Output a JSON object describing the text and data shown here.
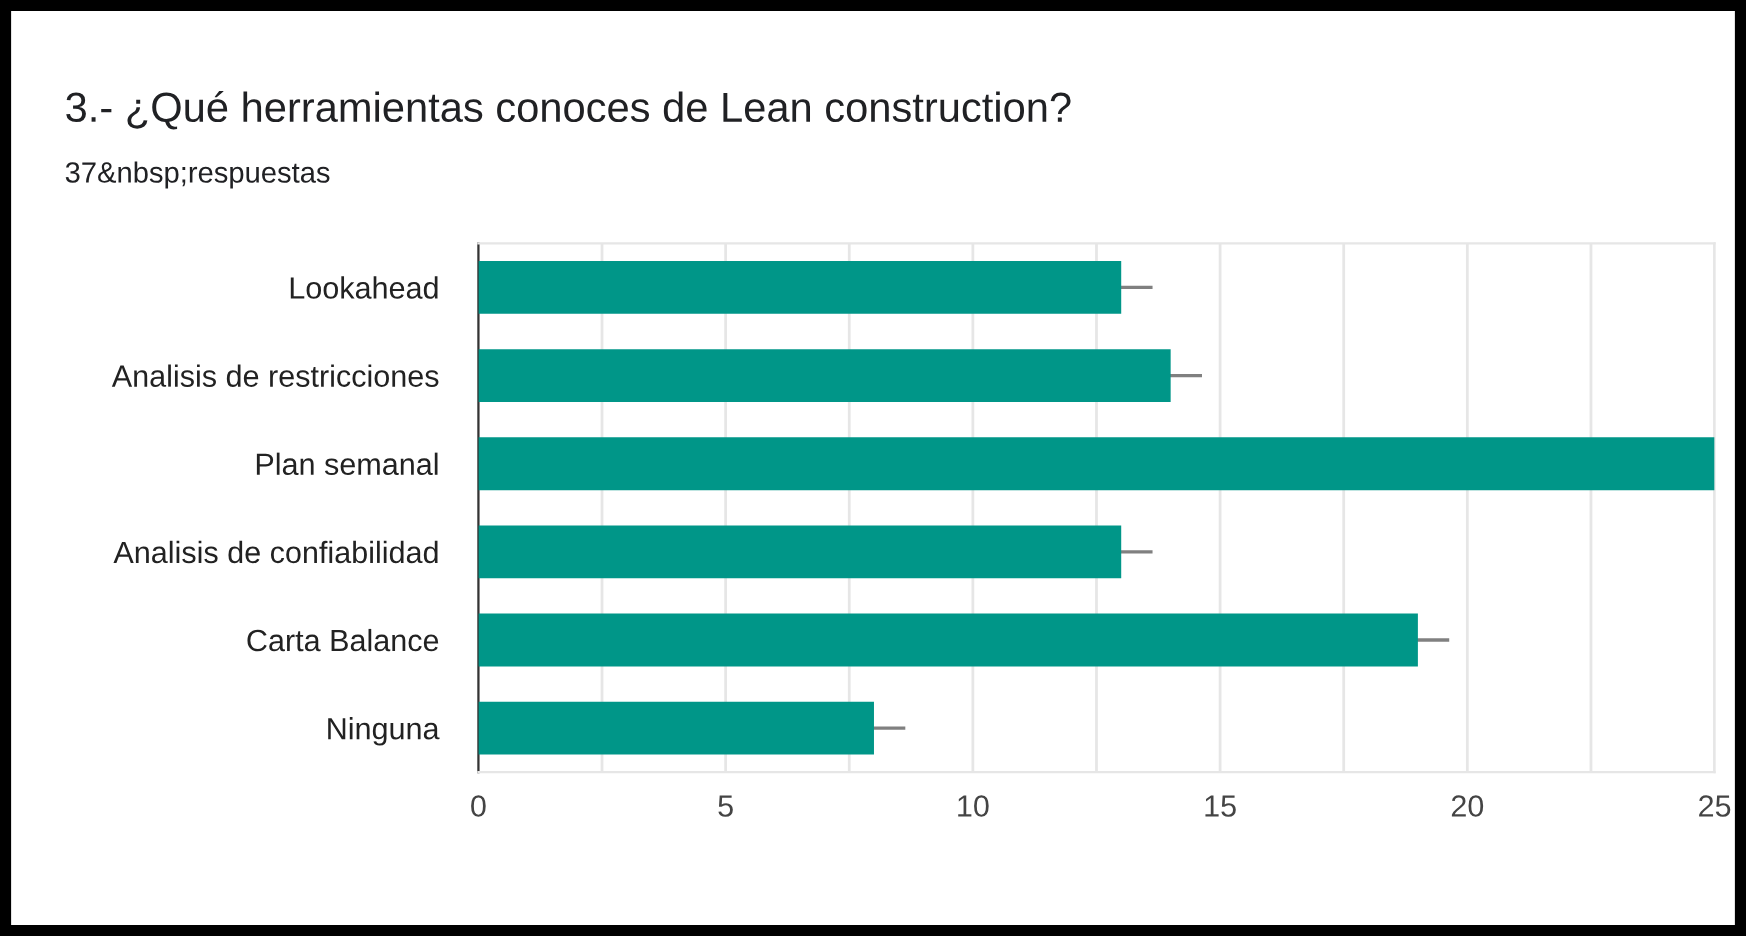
{
  "chart_data": {
    "type": "bar",
    "orientation": "horizontal",
    "title": "3.- ¿Qué herramientas conoces de Lean construction?",
    "subtitle": "37&nbsp;respuestas",
    "categories": [
      "Lookahead",
      "Analisis de restricciones",
      "Plan semanal",
      "Analisis de confiabilidad",
      "Carta Balance",
      "Ninguna"
    ],
    "values": [
      13,
      14,
      25,
      13,
      19,
      8
    ],
    "errors": [
      [
        13,
        13.6
      ],
      [
        14,
        14.6
      ],
      null,
      [
        13,
        13.6
      ],
      [
        19,
        19.6
      ],
      [
        8,
        8.6
      ]
    ],
    "color": "#009688",
    "xlim": [
      0,
      25
    ],
    "xticks": [
      0,
      {
        "value": 2.5,
        "label": null
      },
      5,
      {
        "value": 7.5,
        "label": null
      },
      10,
      {
        "value": 12.5,
        "label": null
      },
      15,
      {
        "value": 17.5,
        "label": null
      },
      20,
      {
        "value": 22.5,
        "label": null
      },
      25
    ],
    "grid": "x"
  }
}
